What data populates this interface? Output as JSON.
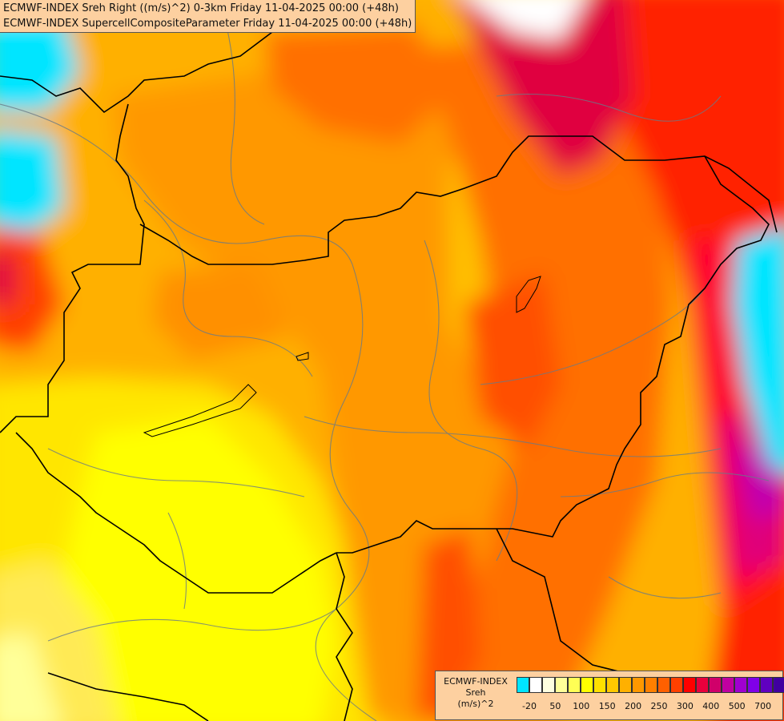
{
  "header": {
    "line1": "ECMWF-INDEX Sreh Right ((m/s)^2) 0-3km Friday 11-04-2025 00:00 (+48h)",
    "line2": "ECMWF-INDEX SupercellCompositeParameter Friday 11-04-2025 00:00 (+48h)"
  },
  "legend": {
    "title1": "ECMWF-INDEX",
    "title2": "Sreh",
    "title3": "(m/s)^2",
    "colors": [
      "#00e5ff",
      "#ffffff",
      "#ffffe0",
      "#ffff99",
      "#ffff55",
      "#ffff00",
      "#ffe000",
      "#ffc800",
      "#ffb000",
      "#ff9800",
      "#ff8000",
      "#ff6000",
      "#ff4000",
      "#ff0000",
      "#e8003c",
      "#d0006a",
      "#c000a0",
      "#a000d0",
      "#8000e8",
      "#6000c0",
      "#4000a0",
      "#200080"
    ],
    "tick_labels": [
      "-20",
      "50",
      "100",
      "150",
      "200",
      "250",
      "300",
      "400",
      "500",
      "700"
    ]
  }
}
